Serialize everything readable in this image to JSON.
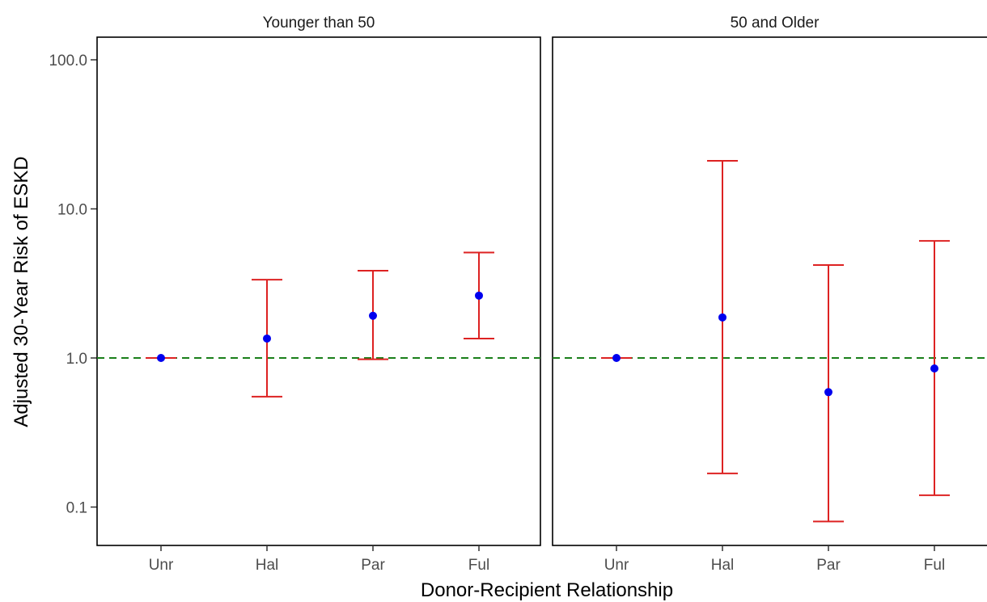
{
  "chart_data": {
    "type": "scatter",
    "ylabel": "Adjusted 30-Year Risk of ESKD",
    "xlabel": "Donor-Recipient Relationship",
    "yscale": "log",
    "ylim": [
      0.055,
      160
    ],
    "yticks": [
      0.1,
      1.0,
      10.0,
      100.0
    ],
    "ytick_labels": [
      "0.1",
      "1.0",
      "10.0",
      "100.0"
    ],
    "categories": [
      "Unr",
      "Hal",
      "Par",
      "Ful"
    ],
    "reference_line": {
      "y": 1.0,
      "style": "dashed",
      "color": "#1a7f1a"
    },
    "grid": false,
    "colors": {
      "point": "#0000ee",
      "errorbar": "#dd2222",
      "reference": "#1a7f1a"
    },
    "panels": [
      {
        "title": "Younger than 50",
        "estimates": [
          1.0,
          1.35,
          1.92,
          2.62
        ],
        "lower": [
          1.0,
          0.55,
          0.98,
          1.35
        ],
        "upper": [
          1.0,
          3.35,
          3.85,
          5.1
        ]
      },
      {
        "title": "50 and Older",
        "estimates": [
          1.0,
          1.87,
          0.59,
          0.85
        ],
        "lower": [
          1.0,
          0.168,
          0.08,
          0.12
        ],
        "upper": [
          1.0,
          21.0,
          4.2,
          6.1
        ]
      }
    ]
  }
}
